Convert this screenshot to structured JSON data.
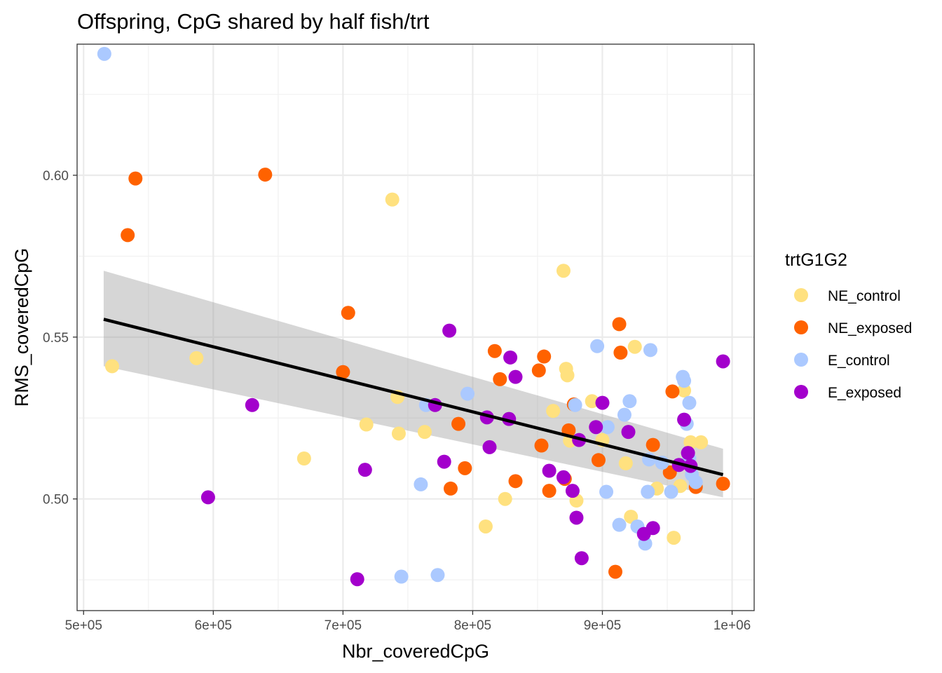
{
  "chart_data": {
    "type": "scatter",
    "title": "Offspring, CpG shared by half fish/trt",
    "xlabel": "Nbr_coveredCpG",
    "ylabel": "RMS_coveredCpG",
    "xlim": [
      495000,
      1017000
    ],
    "ylim": [
      0.4655,
      0.6405
    ],
    "x_ticks": [
      500000,
      600000,
      700000,
      800000,
      900000,
      1000000
    ],
    "x_tick_labels": [
      "5e+05",
      "6e+05",
      "7e+05",
      "8e+05",
      "9e+05",
      "1e+06"
    ],
    "y_ticks": [
      0.5,
      0.55,
      0.6
    ],
    "y_tick_labels": [
      "0.50",
      "0.55",
      "0.60"
    ],
    "grid": true,
    "theme": "bw",
    "legend": {
      "title": "trtG1G2",
      "placement": "right",
      "entries": [
        "NE_control",
        "NE_exposed",
        "E_control",
        "E_exposed"
      ]
    },
    "colors": {
      "NE_control": "#FFE17F",
      "NE_exposed": "#FF6200",
      "E_control": "#ABC9FF",
      "E_exposed": "#A300CC",
      "fit_line": "#000000",
      "confidence_band": "#999999"
    },
    "fit": {
      "method": "lm",
      "x": [
        515500,
        993000
      ],
      "y": [
        0.5555,
        0.5075
      ],
      "se_band": {
        "x": [
          515500,
          993000
        ],
        "lower": [
          0.541,
          0.5005
        ],
        "upper": [
          0.5705,
          0.5155
        ]
      }
    },
    "series": [
      {
        "name": "NE_control",
        "points": [
          [
            522000,
            0.541
          ],
          [
            587000,
            0.5435
          ],
          [
            670000,
            0.5125
          ],
          [
            718000,
            0.523
          ],
          [
            738000,
            0.5925
          ],
          [
            742000,
            0.5315
          ],
          [
            743000,
            0.5202
          ],
          [
            763000,
            0.5207
          ],
          [
            810000,
            0.4915
          ],
          [
            825000,
            0.5
          ],
          [
            862000,
            0.5272
          ],
          [
            870000,
            0.5705
          ],
          [
            872000,
            0.5402
          ],
          [
            873000,
            0.5382
          ],
          [
            875000,
            0.518
          ],
          [
            880000,
            0.4995
          ],
          [
            892000,
            0.5302
          ],
          [
            900000,
            0.5182
          ],
          [
            918000,
            0.511
          ],
          [
            922000,
            0.4945
          ],
          [
            925000,
            0.547
          ],
          [
            942000,
            0.5032
          ],
          [
            955000,
            0.488
          ],
          [
            960000,
            0.504
          ],
          [
            963000,
            0.5335
          ],
          [
            968000,
            0.5175
          ],
          [
            976000,
            0.5175
          ]
        ]
      },
      {
        "name": "NE_exposed",
        "points": [
          [
            534000,
            0.5815
          ],
          [
            540000,
            0.599
          ],
          [
            640000,
            0.6002
          ],
          [
            700000,
            0.5392
          ],
          [
            704000,
            0.5575
          ],
          [
            783000,
            0.5032
          ],
          [
            789000,
            0.5232
          ],
          [
            794000,
            0.5095
          ],
          [
            817000,
            0.5457
          ],
          [
            821000,
            0.537
          ],
          [
            833000,
            0.5055
          ],
          [
            851000,
            0.5397
          ],
          [
            853000,
            0.5165
          ],
          [
            855000,
            0.544
          ],
          [
            859000,
            0.5025
          ],
          [
            871000,
            0.5062
          ],
          [
            874000,
            0.5212
          ],
          [
            878000,
            0.5292
          ],
          [
            897000,
            0.512
          ],
          [
            910000,
            0.4775
          ],
          [
            913000,
            0.554
          ],
          [
            914000,
            0.5452
          ],
          [
            939000,
            0.5167
          ],
          [
            952000,
            0.5082
          ],
          [
            954000,
            0.5332
          ],
          [
            972000,
            0.5037
          ],
          [
            993000,
            0.5047
          ]
        ]
      },
      {
        "name": "E_control",
        "points": [
          [
            516000,
            0.6375
          ],
          [
            760000,
            0.5045
          ],
          [
            764000,
            0.529
          ],
          [
            745000,
            0.476
          ],
          [
            773000,
            0.4765
          ],
          [
            796000,
            0.5325
          ],
          [
            879000,
            0.529
          ],
          [
            896000,
            0.5472
          ],
          [
            903000,
            0.5022
          ],
          [
            904000,
            0.5222
          ],
          [
            913000,
            0.492
          ],
          [
            917000,
            0.526
          ],
          [
            921000,
            0.5302
          ],
          [
            927000,
            0.4915
          ],
          [
            933000,
            0.4862
          ],
          [
            935000,
            0.5022
          ],
          [
            936000,
            0.5122
          ],
          [
            937000,
            0.546
          ],
          [
            946000,
            0.5112
          ],
          [
            953000,
            0.5022
          ],
          [
            962000,
            0.5377
          ],
          [
            963000,
            0.5365
          ],
          [
            965000,
            0.5232
          ],
          [
            967000,
            0.5297
          ],
          [
            967000,
            0.5125
          ],
          [
            969000,
            0.5075
          ],
          [
            972000,
            0.5052
          ]
        ]
      },
      {
        "name": "E_exposed",
        "points": [
          [
            596000,
            0.5005
          ],
          [
            630000,
            0.529
          ],
          [
            711000,
            0.4752
          ],
          [
            717000,
            0.509
          ],
          [
            771000,
            0.529
          ],
          [
            778000,
            0.5115
          ],
          [
            782000,
            0.552
          ],
          [
            811000,
            0.5252
          ],
          [
            813000,
            0.516
          ],
          [
            829000,
            0.5437
          ],
          [
            828000,
            0.5247
          ],
          [
            833000,
            0.5377
          ],
          [
            859000,
            0.5087
          ],
          [
            870000,
            0.5067
          ],
          [
            877000,
            0.5025
          ],
          [
            880000,
            0.4942
          ],
          [
            882000,
            0.5182
          ],
          [
            884000,
            0.4817
          ],
          [
            895000,
            0.5222
          ],
          [
            900000,
            0.5297
          ],
          [
            920000,
            0.5207
          ],
          [
            932000,
            0.4892
          ],
          [
            939000,
            0.491
          ],
          [
            959000,
            0.5105
          ],
          [
            963000,
            0.5245
          ],
          [
            966000,
            0.5142
          ],
          [
            968000,
            0.5102
          ],
          [
            993000,
            0.5425
          ]
        ]
      }
    ]
  }
}
